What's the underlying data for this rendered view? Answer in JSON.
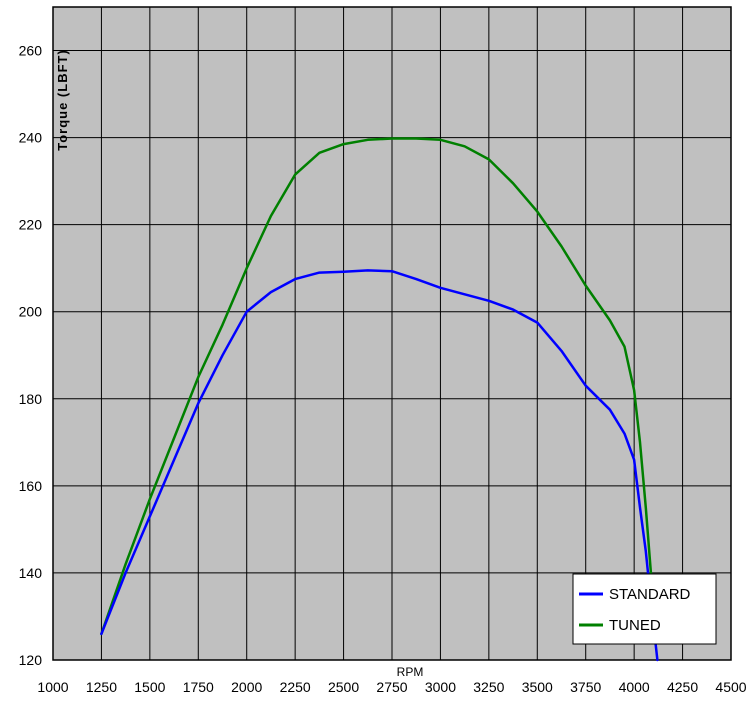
{
  "chart_data": {
    "type": "line",
    "xlabel": "RPM",
    "ylabel": "Torque  (LBFT)",
    "xlim": [
      1000,
      4500
    ],
    "ylim": [
      120,
      270
    ],
    "x_ticks": [
      1000,
      1250,
      1500,
      1750,
      2000,
      2250,
      2500,
      2750,
      3000,
      3250,
      3500,
      3750,
      4000,
      4250,
      4500
    ],
    "y_ticks": [
      120,
      140,
      160,
      180,
      200,
      220,
      240,
      260
    ],
    "grid": true,
    "legend_position": "bottom-right",
    "plot_background": "#c0c0c0",
    "series": [
      {
        "name": "STANDARD",
        "color": "#0000ff",
        "x": [
          1250,
          1375,
          1500,
          1625,
          1750,
          1875,
          2000,
          2125,
          2250,
          2375,
          2500,
          2625,
          2750,
          2875,
          3000,
          3125,
          3250,
          3375,
          3500,
          3625,
          3750,
          3875,
          3950,
          4000,
          4030,
          4060,
          4090,
          4120
        ],
        "y": [
          126,
          140,
          153,
          166,
          179,
          190,
          200,
          204.5,
          207.5,
          209,
          209.2,
          209.5,
          209.3,
          207.5,
          205.5,
          204,
          202.5,
          200.5,
          197.5,
          191,
          183,
          177.5,
          172,
          166,
          155,
          145,
          132,
          120
        ]
      },
      {
        "name": "TUNED",
        "color": "#008000",
        "x": [
          1250,
          1375,
          1500,
          1625,
          1750,
          1875,
          2000,
          2125,
          2250,
          2375,
          2500,
          2625,
          2750,
          2875,
          3000,
          3125,
          3250,
          3375,
          3500,
          3625,
          3750,
          3875,
          3950,
          4000,
          4030,
          4060,
          4090,
          4110
        ],
        "y": [
          126,
          142,
          157,
          171,
          185,
          197,
          210,
          222,
          231.5,
          236.5,
          238.5,
          239.5,
          239.8,
          239.8,
          239.5,
          238,
          235,
          229.5,
          223,
          215,
          206,
          198,
          192,
          182,
          170,
          155,
          138,
          125
        ]
      }
    ]
  }
}
